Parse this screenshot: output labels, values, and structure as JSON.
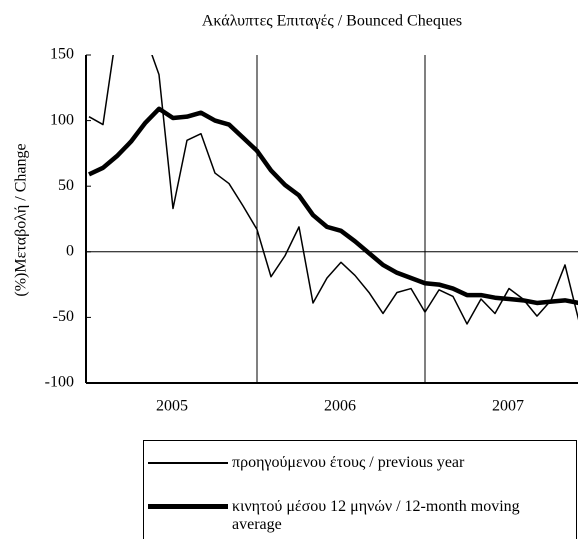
{
  "chart_data": {
    "type": "line",
    "title": "Ακάλυπτες Επιταγές / Bounced Cheques",
    "y_label": "(%)Μεταβολή / Change",
    "categories": [
      null,
      null,
      null,
      null,
      null,
      null,
      "2005",
      null,
      null,
      null,
      null,
      null,
      null,
      null,
      null,
      null,
      null,
      null,
      "2006",
      null,
      null,
      null,
      null,
      null,
      null,
      null,
      null,
      null,
      null,
      null,
      "2007",
      null,
      null,
      null,
      null,
      null
    ],
    "series": [
      {
        "name": "προηγούμενου έτους / previous year",
        "color": "#000000",
        "values": [
          103,
          97,
          170,
          180,
          165,
          135,
          33,
          85,
          90,
          60,
          52,
          35,
          17,
          -19,
          -3,
          19,
          -39,
          -20,
          -8,
          -18,
          -31,
          -47,
          -31,
          -28,
          -46,
          -29,
          -34,
          -55,
          -36,
          -47,
          -28,
          -36,
          -49,
          -37,
          -10,
          -53
        ]
      },
      {
        "name": "κινητού μέσου 12 μηνών / 12-month moving average",
        "color": "#000000",
        "values": [
          59,
          64,
          73,
          84,
          98,
          109,
          102,
          103,
          106,
          100,
          97,
          87,
          77,
          62,
          51,
          43,
          28,
          19,
          16,
          8,
          -1,
          -10,
          -16,
          -20,
          -24,
          -25,
          -28,
          -33,
          -33,
          -35,
          -36,
          -37,
          -39,
          -38,
          -37,
          -39
        ]
      }
    ],
    "ylim": [
      -100,
      150
    ],
    "yticks": [
      -100,
      -50,
      0,
      50,
      100,
      150
    ]
  }
}
